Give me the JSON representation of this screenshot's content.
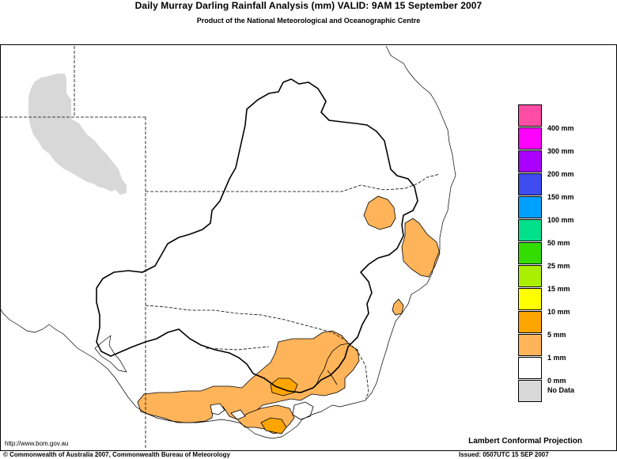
{
  "header": {
    "title": "Daily Murray Darling Rainfall Analysis (mm)  VALID: 9AM 15 September 2007",
    "subtitle": "Product of the National Meteorological and Oceanographic Centre"
  },
  "legend": {
    "items": [
      {
        "label": "400 mm",
        "color": "#ff4da6"
      },
      {
        "label": "300 mm",
        "color": "#ff00ff"
      },
      {
        "label": "200 mm",
        "color": "#aa00ff"
      },
      {
        "label": "150 mm",
        "color": "#3e4cf0"
      },
      {
        "label": "100 mm",
        "color": "#00a0ff"
      },
      {
        "label": "50 mm",
        "color": "#00e08a"
      },
      {
        "label": "25 mm",
        "color": "#33dd00"
      },
      {
        "label": "15 mm",
        "color": "#aaee00"
      },
      {
        "label": "10 mm",
        "color": "#ffff00"
      },
      {
        "label": "5 mm",
        "color": "#ffa500"
      },
      {
        "label": "1 mm",
        "color": "#ffb45a"
      },
      {
        "label": "0 mm",
        "color": "#ffffff"
      },
      {
        "label": "No Data",
        "color": "#d8d8d8"
      }
    ]
  },
  "footer": {
    "url": "http://www.bom.gov.au",
    "projection": "Lambert Conformal Projection",
    "copyright": "© Commonwealth of Australia 2007, Commonwealth Bureau of Meteorology",
    "issued": "Issued: 0507UTC 15 SEP 2007"
  },
  "colors": {
    "rain_1mm": "#ffb45a",
    "no_data": "#d8d8d8"
  }
}
